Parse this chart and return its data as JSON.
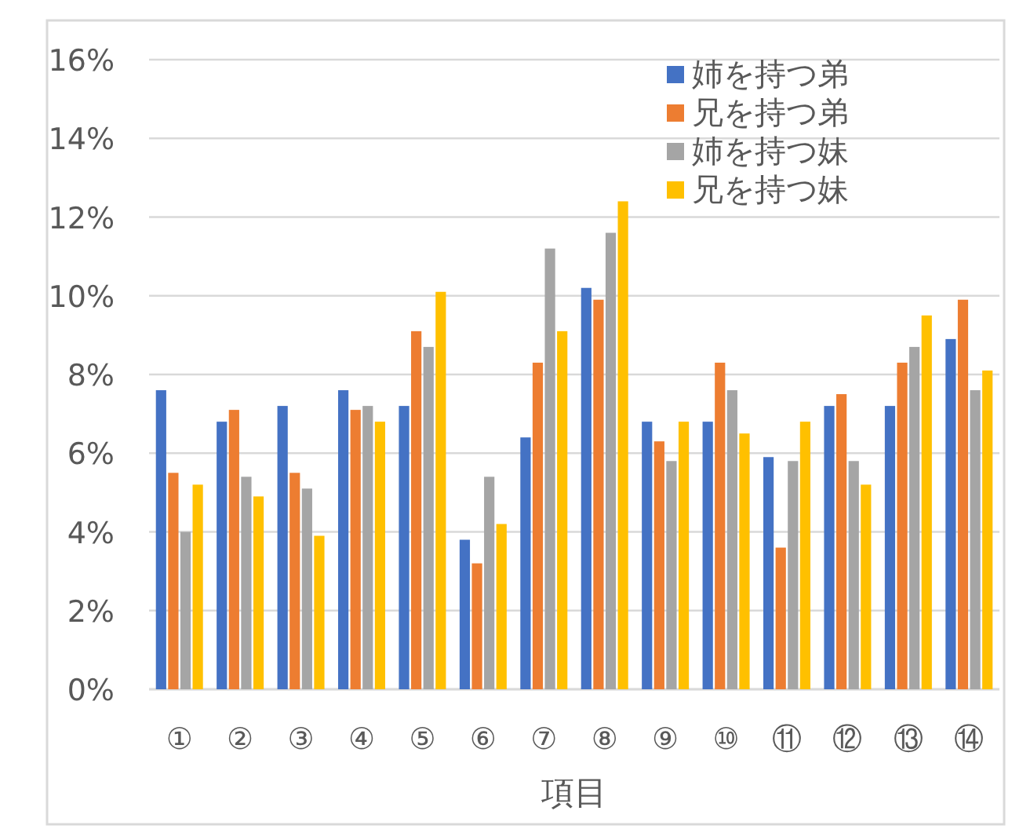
{
  "chart_data": {
    "type": "bar",
    "xlabel": "項目",
    "categories": [
      "①",
      "②",
      "③",
      "④",
      "⑤",
      "⑥",
      "⑦",
      "⑧",
      "⑨",
      "⑩",
      "⑪",
      "⑫",
      "⑬",
      "⑭"
    ],
    "series": [
      {
        "name": "姉を持つ弟",
        "color": "#4472c4",
        "values": [
          7.6,
          6.8,
          7.2,
          7.6,
          7.2,
          3.8,
          6.4,
          10.2,
          6.8,
          6.8,
          5.9,
          7.2,
          7.2,
          8.9
        ]
      },
      {
        "name": "兄を持つ弟",
        "color": "#ed7d31",
        "values": [
          5.5,
          7.1,
          5.5,
          7.1,
          9.1,
          3.2,
          8.3,
          9.9,
          6.3,
          8.3,
          3.6,
          7.5,
          8.3,
          9.9
        ]
      },
      {
        "name": "姉を持つ妹",
        "color": "#a5a5a5",
        "values": [
          4.0,
          5.4,
          5.1,
          7.2,
          8.7,
          5.4,
          11.2,
          11.6,
          5.8,
          7.6,
          5.8,
          5.8,
          8.7,
          7.6
        ]
      },
      {
        "name": "兄を持つ妹",
        "color": "#ffc000",
        "values": [
          5.2,
          4.9,
          3.9,
          6.8,
          10.1,
          4.2,
          9.1,
          12.4,
          6.8,
          6.5,
          6.8,
          5.2,
          9.5,
          8.1
        ]
      }
    ],
    "ylim": [
      0,
      16
    ],
    "yticks": [
      {
        "value": 0,
        "label": "0%"
      },
      {
        "value": 2,
        "label": "2%"
      },
      {
        "value": 4,
        "label": "4%"
      },
      {
        "value": 6,
        "label": "6%"
      },
      {
        "value": 8,
        "label": "8%"
      },
      {
        "value": 10,
        "label": "10%"
      },
      {
        "value": 12,
        "label": "12%"
      },
      {
        "value": 14,
        "label": "14%"
      },
      {
        "value": 16,
        "label": "16%"
      }
    ],
    "grid": "y",
    "legend": "top right"
  }
}
